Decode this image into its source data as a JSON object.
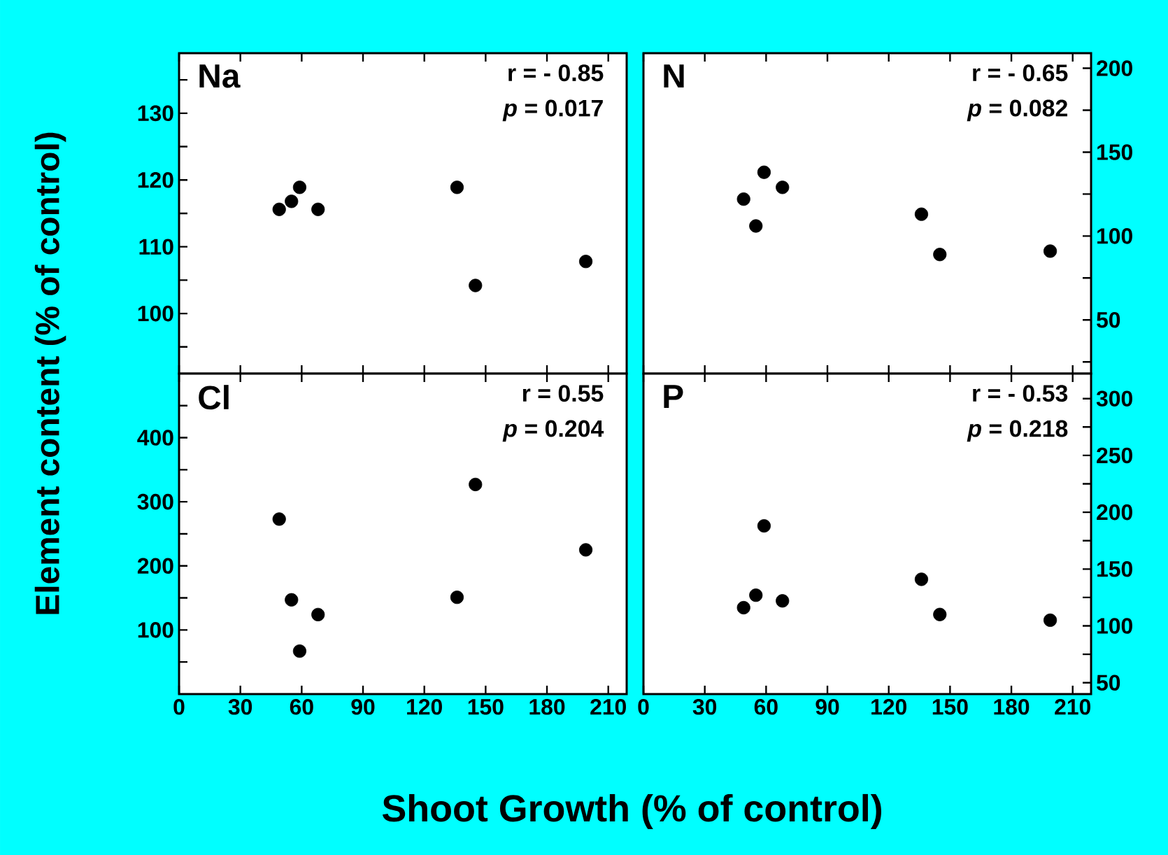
{
  "chart_data": [
    {
      "type": "scatter",
      "title": "Na",
      "ylabel": "Element  content  (% of control)",
      "annotations": [
        "r   = - 0.85",
        "*p*  =   0.017"
      ],
      "marker": "circle",
      "tick_labels": "y",
      "x": [
        49,
        55,
        59,
        68,
        136,
        145,
        199
      ],
      "values": [
        115.6,
        116.8,
        118.9,
        115.6,
        118.9,
        104.2,
        107.8
      ],
      "color": "#000000",
      "xlim": [
        0,
        219
      ],
      "xticks": [
        0,
        30,
        60,
        90,
        120,
        150,
        180,
        210
      ],
      "ylim": [
        91,
        139
      ],
      "yticks": [
        {
          "value": 95,
          "label": null
        },
        100,
        {
          "value": 105,
          "label": null
        },
        110,
        {
          "value": 115,
          "label": null
        },
        120,
        {
          "value": 125,
          "label": null
        },
        130,
        {
          "value": 135,
          "label": null
        }
      ]
    },
    {
      "type": "scatter",
      "title": "N",
      "annotations": [
        "r   = - 0.65",
        "*p*  =   0.082"
      ],
      "marker": "circle",
      "tick_labels": "y",
      "x": [
        49,
        55,
        59,
        68,
        136,
        145,
        199
      ],
      "values": [
        122,
        106,
        138,
        129,
        113,
        89,
        91
      ],
      "color": "#000000",
      "xlim": [
        0,
        219
      ],
      "xticks": [
        0,
        30,
        60,
        90,
        120,
        150,
        180,
        210
      ],
      "ylim": [
        18,
        209
      ],
      "yticks": [
        {
          "value": 25,
          "label": null
        },
        50,
        {
          "value": 75,
          "label": null
        },
        100,
        {
          "value": 125,
          "label": null
        },
        150,
        {
          "value": 175,
          "label": null
        },
        200
      ]
    },
    {
      "type": "scatter",
      "title": "Cl",
      "xlabel": "Shoot Growth (% of control)",
      "annotations": [
        "r   =  0.55",
        "*p*  =  0.204"
      ],
      "marker": "circle",
      "x": [
        49,
        55,
        59,
        68,
        136,
        145,
        199
      ],
      "values": [
        273,
        147,
        67,
        124,
        151,
        327,
        225
      ],
      "color": "#000000",
      "xlim": [
        0,
        219
      ],
      "xticks": [
        0,
        30,
        60,
        90,
        120,
        150,
        180,
        210
      ],
      "ylim": [
        0,
        500
      ],
      "yticks": [
        {
          "value": 50,
          "label": null
        },
        100,
        {
          "value": 150,
          "label": null
        },
        200,
        {
          "value": 250,
          "label": null
        },
        300,
        {
          "value": 350,
          "label": null
        },
        400,
        {
          "value": 450,
          "label": null
        }
      ]
    },
    {
      "type": "scatter",
      "title": "P",
      "annotations": [
        "r   = - 0.53",
        "*p*  =   0.218"
      ],
      "marker": "circle",
      "x": [
        49,
        55,
        59,
        68,
        136,
        145,
        199
      ],
      "values": [
        116,
        127,
        188,
        122,
        141,
        110,
        105
      ],
      "color": "#000000",
      "xlim": [
        0,
        219
      ],
      "xticks": [
        0,
        30,
        60,
        90,
        120,
        150,
        180,
        210
      ],
      "ylim": [
        40,
        322
      ],
      "yticks": [
        50,
        {
          "value": 75,
          "label": null
        },
        100,
        {
          "value": 125,
          "label": null
        },
        150,
        {
          "value": 175,
          "label": null
        },
        200,
        {
          "value": 225,
          "label": null
        },
        250,
        {
          "value": 275,
          "label": null
        },
        300
      ]
    }
  ]
}
